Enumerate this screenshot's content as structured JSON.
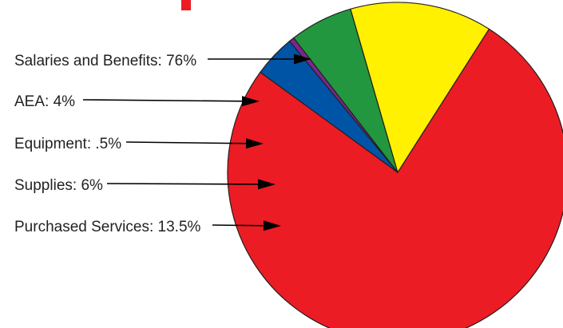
{
  "chart_data": {
    "type": "pie",
    "title": "",
    "slices": [
      {
        "name": "Salaries and Benefits",
        "value": 76,
        "label": "Salaries and Benefits: 76%",
        "color": "#ec1c24"
      },
      {
        "name": "AEA",
        "value": 4,
        "label": "AEA: 4%",
        "color": "#0054a6"
      },
      {
        "name": "Equipment",
        "value": 0.5,
        "label": "Equipment: .5%",
        "color": "#7b2690"
      },
      {
        "name": "Supplies",
        "value": 6,
        "label": "Supplies: 6%",
        "color": "#22973f"
      },
      {
        "name": "Purchased Services",
        "value": 13.5,
        "label": "Purchased Services: 13.5%",
        "color": "#fff100"
      }
    ],
    "legend": "none",
    "accent_bar_color": "#ec1c24"
  }
}
